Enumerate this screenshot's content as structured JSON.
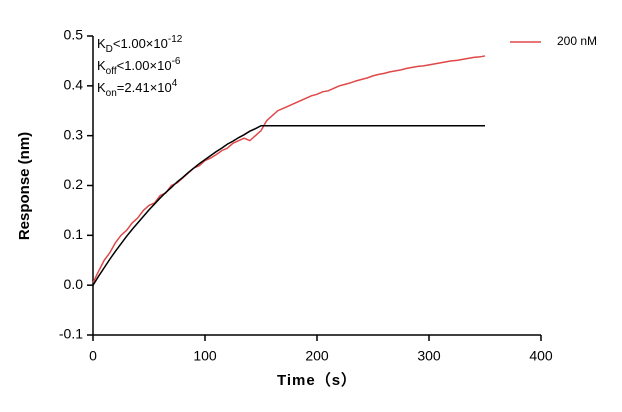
{
  "chart_data": {
    "type": "line",
    "x_label": "Time（s）",
    "y_label": "Response (nm)",
    "annotations": [
      {
        "main": "K",
        "sub": "D",
        "rest": "<1.00×10",
        "sup": "-12"
      },
      {
        "main": "K",
        "sub": "off",
        "rest": "<1.00×10",
        "sup": "-6"
      },
      {
        "main": "K",
        "sub": "on",
        "rest": "=2.41×10",
        "sup": "4"
      }
    ],
    "x": [
      0,
      5,
      10,
      15,
      20,
      25,
      30,
      35,
      40,
      45,
      50,
      55,
      60,
      65,
      70,
      75,
      80,
      85,
      90,
      95,
      100,
      105,
      110,
      115,
      120,
      125,
      130,
      135,
      140,
      145,
      150,
      155,
      160,
      165,
      170,
      175,
      180,
      185,
      190,
      195,
      200,
      205,
      210,
      215,
      220,
      225,
      230,
      235,
      240,
      245,
      250,
      255,
      260,
      265,
      270,
      275,
      280,
      285,
      290,
      295,
      300,
      305,
      310,
      315,
      320,
      325,
      330,
      335,
      340,
      345,
      350
    ],
    "series": [
      {
        "name": "200 nM",
        "color": "#e04848",
        "values": [
          0.005,
          0.028,
          0.05,
          0.065,
          0.085,
          0.1,
          0.11,
          0.125,
          0.135,
          0.15,
          0.16,
          0.165,
          0.18,
          0.185,
          0.2,
          0.205,
          0.215,
          0.225,
          0.235,
          0.24,
          0.25,
          0.255,
          0.262,
          0.27,
          0.275,
          0.285,
          0.29,
          0.295,
          0.29,
          0.3,
          0.31,
          0.33,
          0.34,
          0.35,
          0.355,
          0.36,
          0.365,
          0.37,
          0.375,
          0.38,
          0.383,
          0.388,
          0.39,
          0.395,
          0.4,
          0.403,
          0.406,
          0.41,
          0.413,
          0.416,
          0.42,
          0.423,
          0.425,
          0.428,
          0.43,
          0.432,
          0.435,
          0.437,
          0.439,
          0.44,
          0.442,
          0.444,
          0.446,
          0.448,
          0.45,
          0.451,
          0.453,
          0.455,
          0.457,
          0.458,
          0.46
        ]
      },
      {
        "color": "#000000",
        "values": [
          0,
          0.018,
          0.035,
          0.052,
          0.068,
          0.083,
          0.098,
          0.112,
          0.125,
          0.138,
          0.151,
          0.163,
          0.175,
          0.186,
          0.196,
          0.207,
          0.216,
          0.226,
          0.235,
          0.244,
          0.252,
          0.26,
          0.268,
          0.275,
          0.283,
          0.289,
          0.296,
          0.302,
          0.309,
          0.314,
          0.32,
          0.32,
          0.32,
          0.32,
          0.32,
          0.32,
          0.32,
          0.32,
          0.32,
          0.32,
          0.32,
          0.32,
          0.32,
          0.32,
          0.32,
          0.32,
          0.32,
          0.32,
          0.32,
          0.32,
          0.32,
          0.32,
          0.32,
          0.32,
          0.32,
          0.32,
          0.32,
          0.32,
          0.32,
          0.32,
          0.32,
          0.32,
          0.32,
          0.32,
          0.32,
          0.32,
          0.32,
          0.32,
          0.32,
          0.32,
          0.32
        ]
      }
    ],
    "xlim": [
      0,
      400
    ],
    "xticks": [
      0,
      100,
      200,
      300,
      400
    ],
    "ylim": [
      -0.1,
      0.5
    ],
    "yticks": [
      -0.1,
      {
        "value": 0,
        "label": "0.0"
      },
      0.1,
      0.2,
      0.3,
      0.4,
      0.5
    ],
    "legend": "top-right"
  }
}
